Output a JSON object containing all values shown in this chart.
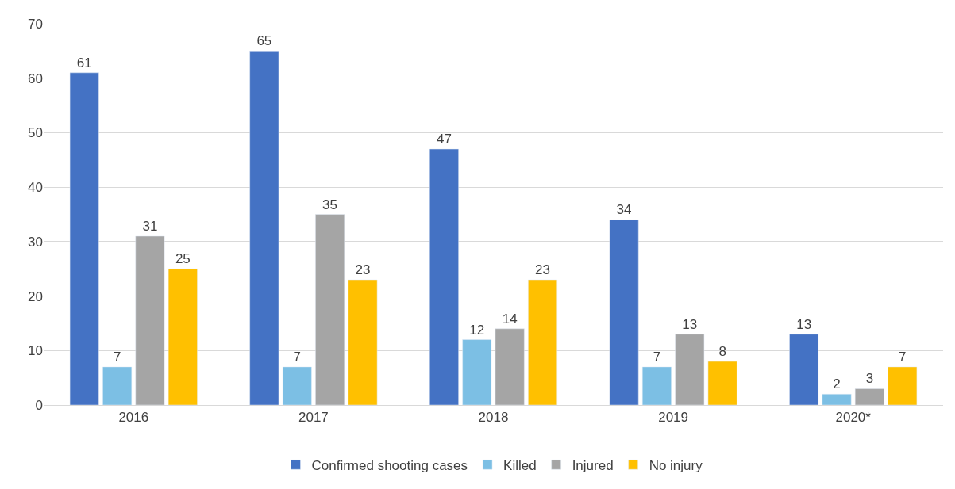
{
  "chart_data": {
    "type": "bar",
    "categories": [
      "2016",
      "2017",
      "2018",
      "2019",
      "2020*"
    ],
    "series": [
      {
        "name": "Confirmed shooting cases",
        "color": "#4472c4",
        "values": [
          61,
          65,
          47,
          34,
          13
        ]
      },
      {
        "name": "Killed",
        "color": "#7cbfe4",
        "values": [
          7,
          7,
          12,
          7,
          2
        ]
      },
      {
        "name": "Injured",
        "color": "#a5a5a5",
        "values": [
          31,
          35,
          14,
          13,
          3
        ]
      },
      {
        "name": "No injury",
        "color": "#ffc000",
        "values": [
          25,
          23,
          23,
          8,
          7
        ]
      }
    ],
    "ylim": [
      0,
      70
    ],
    "yticks": [
      0,
      10,
      20,
      30,
      40,
      50,
      60,
      70
    ],
    "grid": "y",
    "legend": "bottom",
    "data_labels": true
  }
}
